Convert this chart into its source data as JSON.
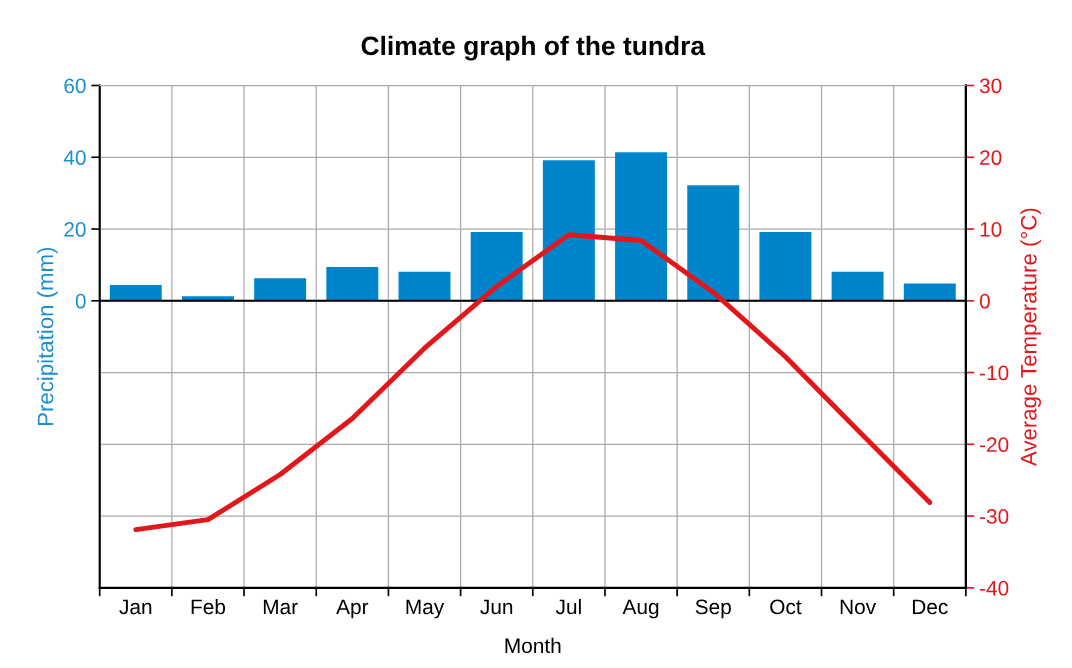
{
  "chart_data": {
    "type": "bar",
    "title": "Climate graph of the tundra",
    "xlabel": "Month",
    "ylabel": "Precipitation (mm)",
    "y2label": "Average Temperature (°C)",
    "categories": [
      "Jan",
      "Feb",
      "Mar",
      "Apr",
      "May",
      "Jun",
      "Jul",
      "Aug",
      "Sep",
      "Oct",
      "Nov",
      "Dec"
    ],
    "series": [
      {
        "color": "#0085cc",
        "values": [
          4.4,
          1.3,
          6.3,
          9.4,
          8.1,
          19.2,
          39.2,
          41.4,
          32.2,
          19.2,
          8.1,
          4.8
        ]
      },
      {
        "type": "line",
        "axis": "y2",
        "color": "#e3161b",
        "values": [
          -31.9,
          -30.5,
          -24.2,
          -16.4,
          -6.6,
          2.0,
          9.2,
          8.4,
          1.2,
          -7.8,
          -18.0,
          -28.1
        ]
      }
    ],
    "ylim": [
      -80,
      60
    ],
    "yticks": [
      0,
      20,
      40,
      60
    ],
    "y2lim": [
      -40,
      30
    ],
    "y2ticks": [
      -40,
      -30,
      -20,
      -10,
      0,
      10,
      20,
      30
    ],
    "ref_lines": [
      {
        "axis": "y",
        "value": 0,
        "color": "#000000"
      }
    ],
    "grid": true,
    "legend": false
  }
}
